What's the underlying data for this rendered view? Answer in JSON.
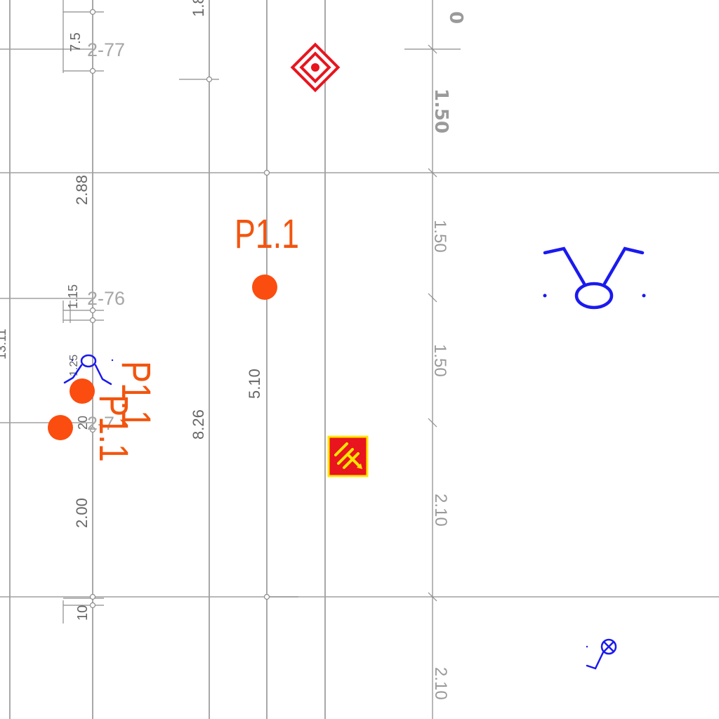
{
  "drawing": {
    "colors": {
      "grid": "#8c8c8c",
      "grid_light": "#a0a0a0",
      "dim_text": "#9a9a9a",
      "marker": "#fb4d0f",
      "marker_label": "#f2550f",
      "symbol_blue": "#1a1aee",
      "symbol_red": "#e8141e",
      "symbol_yellow": "#ffe600"
    },
    "dimensions": {
      "col_a_top": "7.5",
      "col_a_mid": "1.15",
      "col_a_small": "1.25",
      "col_a_2_88": "2.88",
      "col_a_2_00": "2.00",
      "col_a_10": "10",
      "col_a_20": "20",
      "col_b_1_8": "1.8",
      "col_b_8_26": "8.26",
      "col_c_5_10": "5.10",
      "right_0": "0",
      "right_1_50_bold": "1.50",
      "right_1_50_a": "1.50",
      "right_1_50_b": "1.50",
      "right_2_10_a": "2.10",
      "right_2_10_b": "2.10",
      "left_edge": "13.11"
    },
    "level_tags": {
      "tag_2_77": "2-77",
      "tag_2_76": "2-76",
      "tag_2_7": "2-7"
    },
    "markers": {
      "p1_top": "P1.1",
      "p1_left_a": "P1.1",
      "p1_left_b": "P1.1"
    },
    "icons": {
      "target": "target-icon",
      "electrical_panel": "electrical-panel-icon",
      "fixture_large": "ceiling-fixture-icon",
      "fixture_small": "wall-fixture-icon",
      "valve": "valve-icon"
    }
  }
}
